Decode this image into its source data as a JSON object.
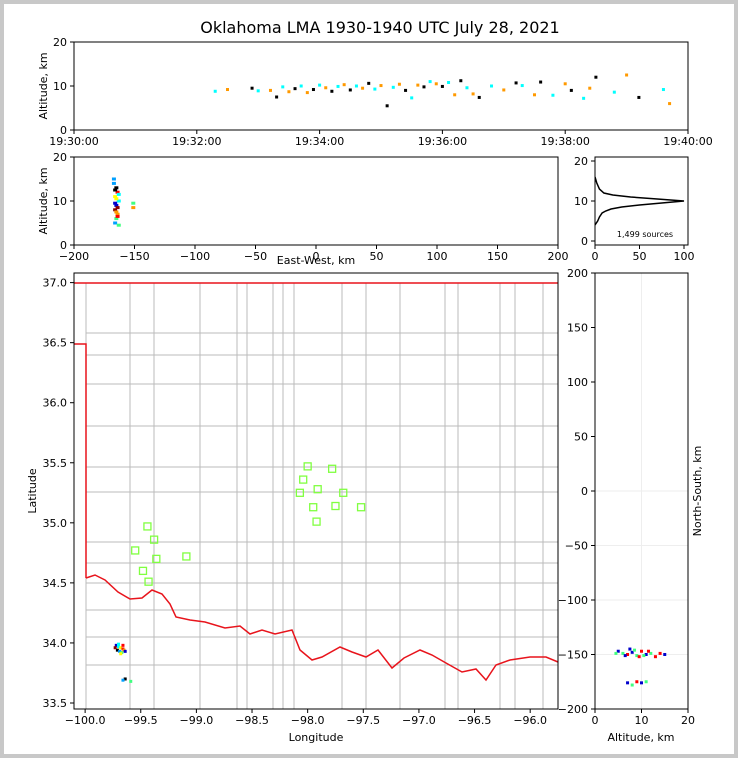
{
  "title": "Oklahoma LMA 1930-1940 UTC July 28, 2021",
  "chart_data": [
    {
      "name": "altitude-vs-time",
      "type": "scatter",
      "ylabel": "Altitude, km",
      "xlim_minutes": [
        0,
        10
      ],
      "ylim": [
        0,
        20
      ],
      "xticks": [
        "19:30:00",
        "19:32:00",
        "19:34:00",
        "19:36:00",
        "19:38:00",
        "19:40:00"
      ],
      "yticks": [
        "0",
        "10",
        "20"
      ],
      "points": [
        [
          2.3,
          8.8
        ],
        [
          2.5,
          9.2
        ],
        [
          2.9,
          9.5
        ],
        [
          3.0,
          8.9
        ],
        [
          3.2,
          9.0
        ],
        [
          3.3,
          7.5
        ],
        [
          3.4,
          9.8
        ],
        [
          3.5,
          8.7
        ],
        [
          3.6,
          9.4
        ],
        [
          3.7,
          10.0
        ],
        [
          3.8,
          8.5
        ],
        [
          3.9,
          9.2
        ],
        [
          4.0,
          10.2
        ],
        [
          4.1,
          9.6
        ],
        [
          4.2,
          8.8
        ],
        [
          4.3,
          9.9
        ],
        [
          4.4,
          10.3
        ],
        [
          4.5,
          9.1
        ],
        [
          4.6,
          10.0
        ],
        [
          4.7,
          9.5
        ],
        [
          4.8,
          10.6
        ],
        [
          4.9,
          9.3
        ],
        [
          5.0,
          10.1
        ],
        [
          5.1,
          5.5
        ],
        [
          5.2,
          9.7
        ],
        [
          5.3,
          10.4
        ],
        [
          5.4,
          9.0
        ],
        [
          5.5,
          7.3
        ],
        [
          5.6,
          10.2
        ],
        [
          5.7,
          9.8
        ],
        [
          5.8,
          11.0
        ],
        [
          5.9,
          10.5
        ],
        [
          6.0,
          9.9
        ],
        [
          6.1,
          10.8
        ],
        [
          6.2,
          8.0
        ],
        [
          6.3,
          11.2
        ],
        [
          6.4,
          9.6
        ],
        [
          6.5,
          8.2
        ],
        [
          6.6,
          7.4
        ],
        [
          6.8,
          10.0
        ],
        [
          7.0,
          9.1
        ],
        [
          7.2,
          10.7
        ],
        [
          7.3,
          10.1
        ],
        [
          7.5,
          8.0
        ],
        [
          7.6,
          10.9
        ],
        [
          7.8,
          7.9
        ],
        [
          8.0,
          10.5
        ],
        [
          8.1,
          9.0
        ],
        [
          8.3,
          7.2
        ],
        [
          8.4,
          9.5
        ],
        [
          8.5,
          12.0
        ],
        [
          8.8,
          8.6
        ],
        [
          9.0,
          12.5
        ],
        [
          9.2,
          7.4
        ],
        [
          9.6,
          9.2
        ],
        [
          9.7,
          6.0
        ]
      ]
    },
    {
      "name": "altitude-vs-east-west",
      "type": "scatter",
      "xlabel": "East-West, km",
      "ylabel": "Altitude, km",
      "xlim": [
        -200,
        200
      ],
      "ylim": [
        0,
        20
      ],
      "xticks": [
        "−200",
        "−150",
        "−100",
        "−50",
        "0",
        "50",
        "100",
        "150",
        "200"
      ],
      "yticks": [
        "0",
        "10",
        "20"
      ],
      "points": [
        [
          -166,
          5
        ],
        [
          -165,
          6
        ],
        [
          -164,
          7
        ],
        [
          -166,
          8
        ],
        [
          -165,
          9
        ],
        [
          -163,
          10
        ],
        [
          -166,
          11
        ],
        [
          -164,
          12
        ],
        [
          -165,
          13
        ],
        [
          -167,
          14
        ],
        [
          -163,
          4.5
        ],
        [
          -165,
          7.5
        ],
        [
          -164,
          8.5
        ],
        [
          -166,
          9.5
        ],
        [
          -163,
          11.5
        ],
        [
          -165,
          10.5
        ],
        [
          -164,
          6.5
        ],
        [
          -166,
          12.5
        ],
        [
          -167,
          15
        ],
        [
          -151,
          9.5
        ],
        [
          -151,
          8.5
        ]
      ]
    },
    {
      "name": "altitude-histogram",
      "type": "line",
      "xlim": [
        0,
        100
      ],
      "ylim": [
        0,
        20
      ],
      "xticks": [
        "0",
        "50",
        "100"
      ],
      "yticks": [
        "0",
        "10",
        "20"
      ],
      "annotation": "1,499 sources",
      "x": [
        0,
        3,
        5,
        8,
        12,
        18,
        30,
        50,
        75,
        100,
        70,
        40,
        20,
        10,
        5,
        2,
        0
      ],
      "y": [
        4,
        5,
        6,
        7,
        7.5,
        8,
        8.5,
        9,
        9.5,
        10,
        10.5,
        11,
        11.5,
        12,
        13,
        14.5,
        16
      ]
    },
    {
      "name": "latitude-vs-longitude-map",
      "type": "map",
      "xlabel": "Longitude",
      "ylabel": "Latitude",
      "xlim": [
        -100.1,
        -95.75
      ],
      "ylim": [
        33.45,
        37.08
      ],
      "xticks": [
        "−100.0",
        "−99.5",
        "−99.0",
        "−98.5",
        "−98.0",
        "−97.5",
        "−97.0",
        "−96.5",
        "−96.0"
      ],
      "yticks": [
        "33.5",
        "34.0",
        "34.5",
        "35.0",
        "35.5",
        "36.0",
        "36.5",
        "37.0"
      ],
      "stations": [
        [
          -98.0,
          35.47
        ],
        [
          -97.78,
          35.45
        ],
        [
          -98.04,
          35.36
        ],
        [
          -97.91,
          35.28
        ],
        [
          -98.07,
          35.25
        ],
        [
          -97.68,
          35.25
        ],
        [
          -97.95,
          35.13
        ],
        [
          -97.75,
          35.14
        ],
        [
          -97.52,
          35.13
        ],
        [
          -97.92,
          35.01
        ],
        [
          -99.44,
          34.97
        ],
        [
          -99.38,
          34.86
        ],
        [
          -99.55,
          34.77
        ],
        [
          -99.36,
          34.7
        ],
        [
          -99.09,
          34.72
        ],
        [
          -99.48,
          34.6
        ],
        [
          -99.43,
          34.51
        ]
      ],
      "sources": [
        [
          -99.72,
          33.98
        ],
        [
          -99.7,
          33.97
        ],
        [
          -99.68,
          33.96
        ],
        [
          -99.66,
          33.95
        ],
        [
          -99.71,
          33.94
        ],
        [
          -99.69,
          33.93
        ],
        [
          -99.67,
          33.92
        ],
        [
          -99.65,
          33.94
        ],
        [
          -99.73,
          33.96
        ],
        [
          -99.64,
          33.93
        ],
        [
          -99.7,
          33.99
        ],
        [
          -99.68,
          33.91
        ],
        [
          -99.66,
          33.98
        ],
        [
          -99.64,
          33.7
        ],
        [
          -99.66,
          33.69
        ],
        [
          -99.59,
          33.68
        ]
      ]
    },
    {
      "name": "north-south-vs-altitude",
      "type": "scatter",
      "xlabel": "Altitude, km",
      "ylabel": "North-South, km",
      "xlim": [
        0,
        20
      ],
      "ylim": [
        -200,
        200
      ],
      "xticks": [
        "0",
        "10",
        "20"
      ],
      "yticks": [
        "−200",
        "−150",
        "−100",
        "−50",
        "0",
        "50",
        "100",
        "150",
        "200"
      ],
      "points": [
        [
          5,
          -147
        ],
        [
          6,
          -149
        ],
        [
          7,
          -150
        ],
        [
          8,
          -148
        ],
        [
          9,
          -151
        ],
        [
          10,
          -147
        ],
        [
          11,
          -150
        ],
        [
          12,
          -149
        ],
        [
          13,
          -152
        ],
        [
          6.5,
          -151
        ],
        [
          8.5,
          -146
        ],
        [
          9.5,
          -152
        ],
        [
          7.5,
          -145
        ],
        [
          10.5,
          -151
        ],
        [
          14,
          -149
        ],
        [
          15,
          -150
        ],
        [
          4.5,
          -149
        ],
        [
          11.5,
          -147
        ],
        [
          7,
          -176
        ],
        [
          8,
          -178
        ],
        [
          9,
          -175
        ],
        [
          10,
          -176
        ],
        [
          11,
          -175
        ]
      ]
    }
  ],
  "colors": {
    "state_border": "#e8141c",
    "county_lines": "#bbbbbb",
    "stations": "#80ff40",
    "palette": [
      "#0000cc",
      "#00a0ff",
      "#00ffff",
      "#40ff80",
      "#ffff00",
      "#ff9900",
      "#ff0000",
      "#880000",
      "#000000"
    ]
  }
}
